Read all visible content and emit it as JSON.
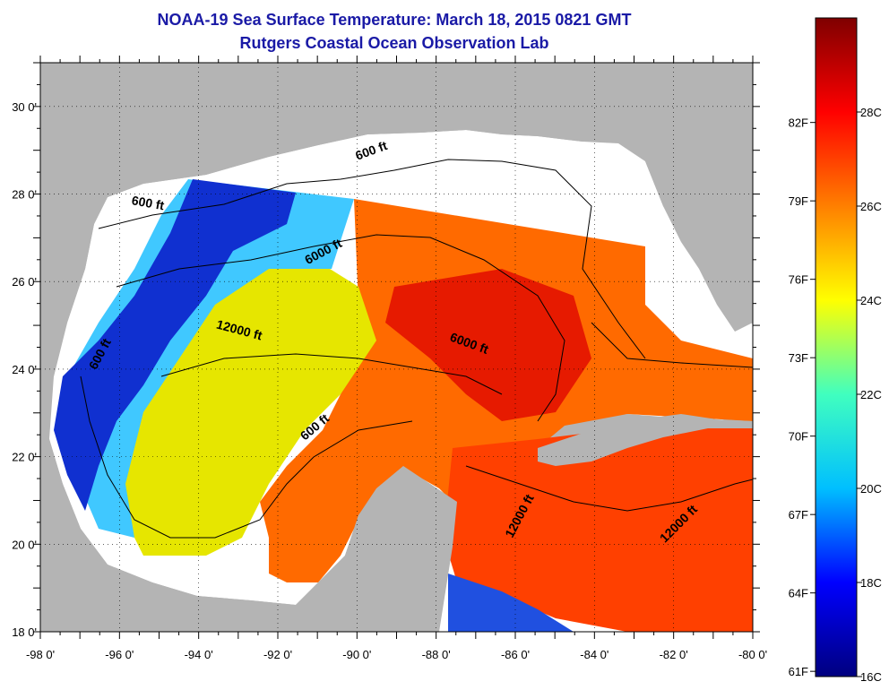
{
  "header": {
    "title": "NOAA-19 Sea Surface Temperature:  March 18, 2015 0821 GMT",
    "subtitle": "Rutgers Coastal Ocean Observation Lab"
  },
  "map": {
    "lon_range": [
      -98,
      -80
    ],
    "lat_range": [
      18,
      31
    ],
    "lon_ticks": [
      "-98 0'",
      "-96 0'",
      "-94 0'",
      "-92 0'",
      "-90 0'",
      "-88 0'",
      "-86 0'",
      "-84 0'",
      "-82 0'",
      "-80 0'"
    ],
    "lat_ticks": [
      "18 0'",
      "20 0'",
      "22 0'",
      "24 0'",
      "26 0'",
      "28 0'",
      "30 0'"
    ],
    "contour_labels": [
      {
        "text": "600 ft",
        "lon": -89.6,
        "lat": 28.9,
        "angle": -20
      },
      {
        "text": "600 ft",
        "lon": -95.3,
        "lat": 27.7,
        "angle": 10
      },
      {
        "text": "6000 ft",
        "lon": -90.8,
        "lat": 26.6,
        "angle": -28
      },
      {
        "text": "12000 ft",
        "lon": -93.0,
        "lat": 24.8,
        "angle": 15
      },
      {
        "text": "600 ft",
        "lon": -96.4,
        "lat": 24.3,
        "angle": -62
      },
      {
        "text": "6000 ft",
        "lon": -87.2,
        "lat": 24.5,
        "angle": 20
      },
      {
        "text": "600 ft",
        "lon": -91.0,
        "lat": 22.6,
        "angle": -40
      },
      {
        "text": "12000 ft",
        "lon": -85.8,
        "lat": 20.6,
        "angle": -62
      },
      {
        "text": "12000 ft",
        "lon": -81.8,
        "lat": 20.4,
        "angle": -45
      }
    ],
    "colors": {
      "land": "#b4b4b4",
      "no_data": "#ffffff",
      "contour": "#000000"
    }
  },
  "colorbar": {
    "range_c": [
      16,
      30
    ],
    "fahrenheit_labels": [
      "82F",
      "79F",
      "76F",
      "73F",
      "70F",
      "67F",
      "64F",
      "61F"
    ],
    "celsius_labels": [
      "28C",
      "26C",
      "24C",
      "22C",
      "20C",
      "18C",
      "16C"
    ],
    "stops": [
      "#00007f",
      "#0000ff",
      "#00bfff",
      "#40ffbf",
      "#ffff00",
      "#ff7f00",
      "#ff0000",
      "#7f0000"
    ]
  }
}
